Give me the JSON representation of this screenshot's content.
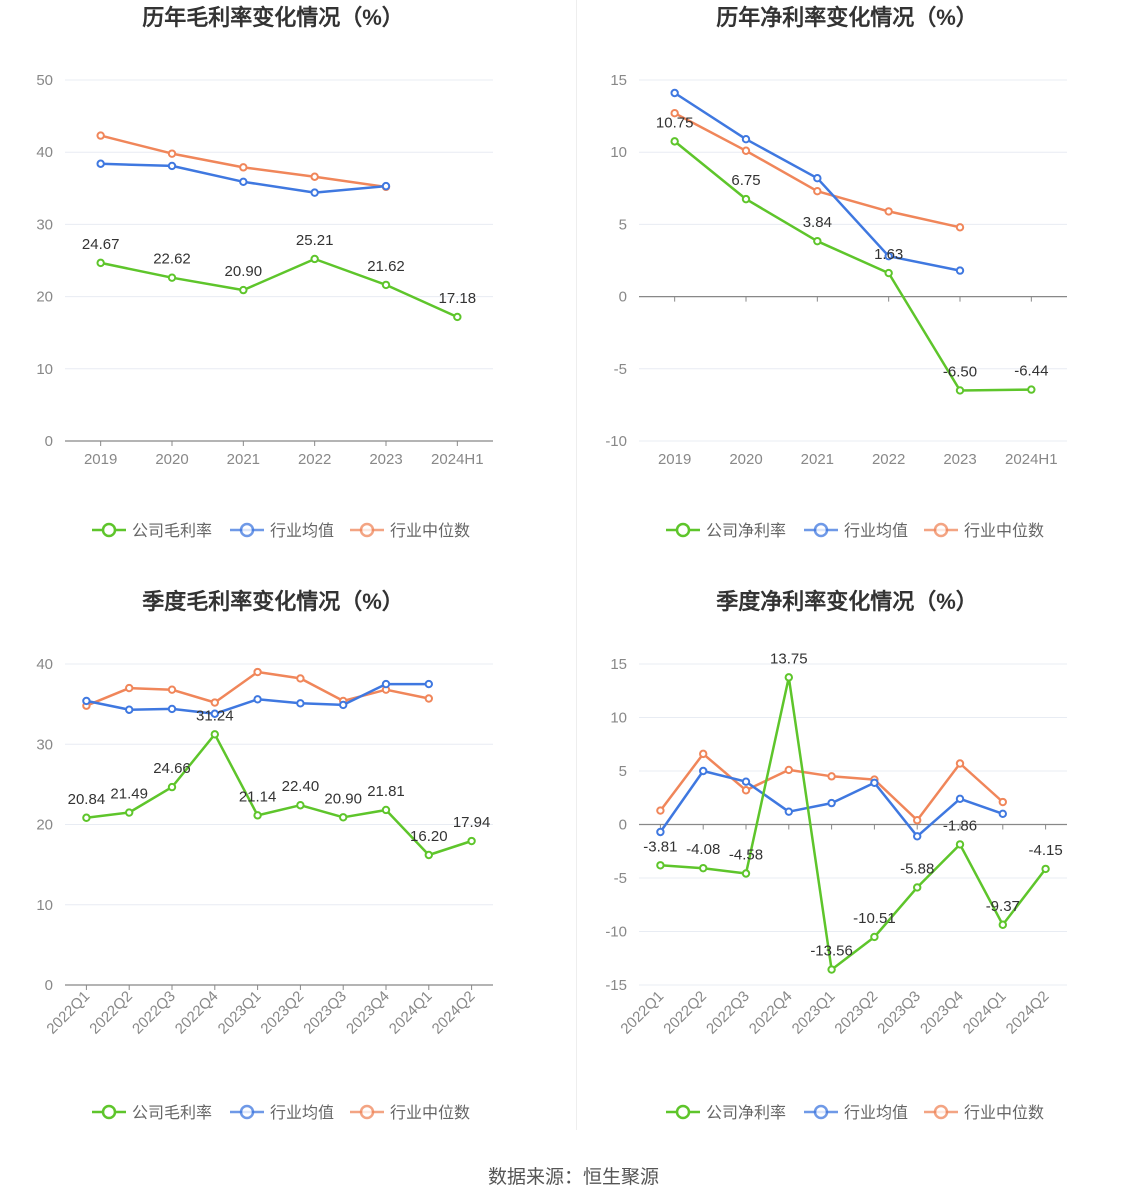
{
  "colors": {
    "company": "#5ec52b",
    "industry_avg": "#3f78e0",
    "industry_median": "#f0865a"
  },
  "footer_text": "数据来源：恒生聚源",
  "chart_data": [
    {
      "type": "line",
      "title": "历年毛利率变化情况（%）",
      "categories": [
        "2019",
        "2020",
        "2021",
        "2022",
        "2023",
        "2024H1"
      ],
      "ylim": [
        0,
        50
      ],
      "yticks": [
        0,
        10,
        20,
        30,
        40,
        50
      ],
      "tick_rotate": false,
      "series": [
        {
          "name": "公司毛利率",
          "key": "company",
          "values": [
            24.67,
            22.62,
            20.9,
            25.21,
            21.62,
            17.18
          ],
          "labels": [
            "24.67",
            "22.62",
            "20.90",
            "25.21",
            "21.62",
            "17.18"
          ]
        },
        {
          "name": "行业均值",
          "key": "industry_avg",
          "values": [
            38.4,
            38.1,
            35.9,
            34.4,
            35.3,
            null
          ]
        },
        {
          "name": "行业中位数",
          "key": "industry_median",
          "values": [
            42.3,
            39.8,
            37.9,
            36.6,
            35.2,
            null
          ]
        }
      ]
    },
    {
      "type": "line",
      "title": "历年净利率变化情况（%）",
      "categories": [
        "2019",
        "2020",
        "2021",
        "2022",
        "2023",
        "2024H1"
      ],
      "ylim": [
        -10,
        15
      ],
      "yticks": [
        -10,
        -5,
        0,
        5,
        10,
        15
      ],
      "tick_rotate": false,
      "series": [
        {
          "name": "公司净利率",
          "key": "company",
          "values": [
            10.75,
            6.75,
            3.84,
            1.63,
            -6.5,
            -6.44
          ],
          "labels": [
            "10.75",
            "6.75",
            "3.84",
            "1.63",
            "-6.50",
            "-6.44"
          ]
        },
        {
          "name": "行业均值",
          "key": "industry_avg",
          "values": [
            14.1,
            10.9,
            8.2,
            2.8,
            1.8,
            null
          ]
        },
        {
          "name": "行业中位数",
          "key": "industry_median",
          "values": [
            12.7,
            10.1,
            7.3,
            5.9,
            4.8,
            null
          ]
        }
      ]
    },
    {
      "type": "line",
      "title": "季度毛利率变化情况（%）",
      "categories": [
        "2022Q1",
        "2022Q2",
        "2022Q3",
        "2022Q4",
        "2023Q1",
        "2023Q2",
        "2023Q3",
        "2023Q4",
        "2024Q1",
        "2024Q2"
      ],
      "ylim": [
        0,
        40
      ],
      "yticks": [
        0,
        10,
        20,
        30,
        40
      ],
      "tick_rotate": true,
      "series": [
        {
          "name": "公司毛利率",
          "key": "company",
          "values": [
            20.84,
            21.49,
            24.66,
            31.24,
            21.14,
            22.4,
            20.9,
            21.81,
            16.2,
            17.94
          ],
          "labels": [
            "20.84",
            "21.49",
            "24.66",
            "31.24",
            "21.14",
            "22.40",
            "20.90",
            "21.81",
            "16.20",
            "17.94"
          ]
        },
        {
          "name": "行业均值",
          "key": "industry_avg",
          "values": [
            35.4,
            34.3,
            34.4,
            33.8,
            35.6,
            35.1,
            34.9,
            37.5,
            37.5,
            null
          ]
        },
        {
          "name": "行业中位数",
          "key": "industry_median",
          "values": [
            34.8,
            37.0,
            36.8,
            35.2,
            39.0,
            38.2,
            35.4,
            36.8,
            35.7,
            null
          ]
        }
      ]
    },
    {
      "type": "line",
      "title": "季度净利率变化情况（%）",
      "categories": [
        "2022Q1",
        "2022Q2",
        "2022Q3",
        "2022Q4",
        "2023Q1",
        "2023Q2",
        "2023Q3",
        "2023Q4",
        "2024Q1",
        "2024Q2"
      ],
      "ylim": [
        -15,
        15
      ],
      "yticks": [
        -15,
        -10,
        -5,
        0,
        5,
        10,
        15
      ],
      "tick_rotate": true,
      "series": [
        {
          "name": "公司净利率",
          "key": "company",
          "values": [
            -3.81,
            -4.08,
            -4.58,
            13.75,
            -13.56,
            -10.51,
            -5.88,
            -1.86,
            -9.37,
            -4.15
          ],
          "labels": [
            "-3.81",
            "-4.08",
            "-4.58",
            "13.75",
            "-13.56",
            "-10.51",
            "-5.88",
            "-1.86",
            "-9.37",
            "-4.15"
          ]
        },
        {
          "name": "行业均值",
          "key": "industry_avg",
          "values": [
            -0.7,
            5.0,
            4.0,
            1.2,
            2.0,
            3.9,
            -1.1,
            2.4,
            1.0,
            null
          ]
        },
        {
          "name": "行业中位数",
          "key": "industry_median",
          "values": [
            1.3,
            6.6,
            3.2,
            5.1,
            4.5,
            4.2,
            0.4,
            5.7,
            2.1,
            null
          ]
        }
      ]
    }
  ]
}
